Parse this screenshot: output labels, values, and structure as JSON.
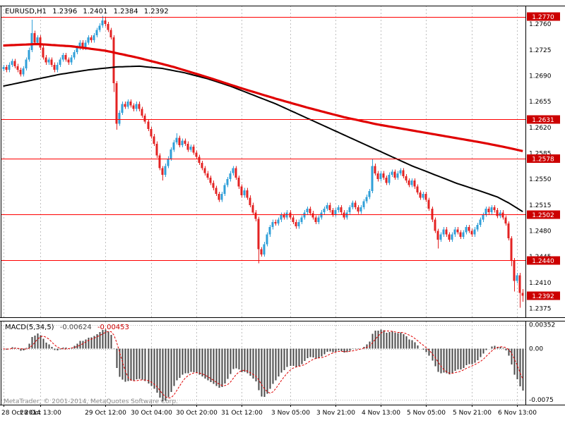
{
  "header": {
    "symbol_period": "EURUSD,H1",
    "open": "1.2396",
    "high": "1.2401",
    "low": "1.2384",
    "close": "1.2392"
  },
  "macd_label": {
    "name": "MACD(5,34,5)",
    "value": "-0.00624",
    "signal": "-0.00453"
  },
  "footer": {
    "copyright": "MetaTrader, © 2001-2014, MetaQuotes Software Corp."
  },
  "colors": {
    "bull": "#2f9fd8",
    "bear": "#e32222",
    "ma_fast": "#000000",
    "ma_slow": "#e00000",
    "level_line": "#ff0000",
    "level_box": "#cc0000",
    "grid": "#c0c0c0",
    "macd_hist": "#4a4a4a",
    "macd_signal": "#e00000",
    "axis_text": "#000000"
  },
  "chart_data": {
    "type": "candlestick+macd",
    "symbol": "EURUSD",
    "timeframe": "H1",
    "title": "EURUSD,H1 1.2396 1.2401 1.2384 1.2392",
    "ohlc_current": {
      "open": 1.2396,
      "high": 1.2401,
      "low": 1.2384,
      "close": 1.2392
    },
    "price_axis": {
      "min": 1.2363,
      "max": 1.2785,
      "tick_labels": [
        1.276,
        1.2725,
        1.269,
        1.2655,
        1.262,
        1.2585,
        1.255,
        1.2515,
        1.248,
        1.2445,
        1.241,
        1.2375
      ]
    },
    "levels": [
      1.277,
      1.2631,
      1.2578,
      1.2502,
      1.244
    ],
    "current_price": 1.2392,
    "time_axis": {
      "ticks": [
        {
          "label": "28 Oct 2014",
          "bar": 0,
          "align": "left"
        },
        {
          "label": "28 Oct 13:00",
          "bar": 13
        },
        {
          "label": "29 Oct 12:00",
          "bar": 36
        },
        {
          "label": "30 Oct 04:00",
          "bar": 52
        },
        {
          "label": "30 Oct 20:00",
          "bar": 68
        },
        {
          "label": "31 Oct 12:00",
          "bar": 84
        },
        {
          "label": "3 Nov 05:00",
          "bar": 101
        },
        {
          "label": "3 Nov 21:00",
          "bar": 117
        },
        {
          "label": "4 Nov 13:00",
          "bar": 133
        },
        {
          "label": "5 Nov 05:00",
          "bar": 149
        },
        {
          "label": "5 Nov 21:00",
          "bar": 165
        },
        {
          "label": "6 Nov 13:00",
          "bar": 181
        }
      ]
    },
    "candles": {
      "first_open": 1.2699,
      "closes": [
        1.2702,
        1.2698,
        1.2705,
        1.271,
        1.2703,
        1.2698,
        1.2692,
        1.27,
        1.2712,
        1.2725,
        1.2748,
        1.2735,
        1.2742,
        1.2728,
        1.2715,
        1.2708,
        1.2712,
        1.2705,
        1.2698,
        1.2705,
        1.2712,
        1.2718,
        1.2712,
        1.2708,
        1.2715,
        1.2722,
        1.2728,
        1.2735,
        1.2728,
        1.2735,
        1.2742,
        1.2738,
        1.2745,
        1.2752,
        1.2758,
        1.2765,
        1.276,
        1.2752,
        1.2742,
        1.268,
        1.2625,
        1.264,
        1.2652,
        1.2648,
        1.2655,
        1.265,
        1.2645,
        1.2652,
        1.2645,
        1.2636,
        1.2628,
        1.2618,
        1.2608,
        1.2598,
        1.2582,
        1.2565,
        1.2556,
        1.2568,
        1.2578,
        1.259,
        1.26,
        1.2606,
        1.2596,
        1.2602,
        1.2598,
        1.259,
        1.2594,
        1.2586,
        1.258,
        1.2572,
        1.2565,
        1.2558,
        1.2552,
        1.2545,
        1.2538,
        1.253,
        1.2522,
        1.253,
        1.2542,
        1.255,
        1.2558,
        1.2565,
        1.2552,
        1.254,
        1.2528,
        1.2535,
        1.2525,
        1.2515,
        1.2505,
        1.2496,
        1.2455,
        1.2448,
        1.2462,
        1.2475,
        1.2485,
        1.2492,
        1.249,
        1.2495,
        1.2502,
        1.2498,
        1.2505,
        1.2498,
        1.2492,
        1.2486,
        1.2492,
        1.2498,
        1.2505,
        1.251,
        1.2504,
        1.2498,
        1.2492,
        1.2498,
        1.2505,
        1.251,
        1.2515,
        1.2508,
        1.2502,
        1.2508,
        1.2512,
        1.2505,
        1.2498,
        1.2505,
        1.2512,
        1.2518,
        1.2512,
        1.2506,
        1.2512,
        1.252,
        1.2526,
        1.2534,
        1.2568,
        1.2558,
        1.255,
        1.2558,
        1.2552,
        1.2545,
        1.2556,
        1.256,
        1.2552,
        1.2558,
        1.2562,
        1.2554,
        1.2548,
        1.2542,
        1.2548,
        1.254,
        1.2532,
        1.2525,
        1.253,
        1.2522,
        1.251,
        1.2495,
        1.248,
        1.2468,
        1.2475,
        1.2482,
        1.2475,
        1.2468,
        1.2475,
        1.2482,
        1.2478,
        1.2472,
        1.2478,
        1.2485,
        1.248,
        1.2475,
        1.2482,
        1.2488,
        1.2495,
        1.2502,
        1.251,
        1.2505,
        1.2512,
        1.2508,
        1.25,
        1.2505,
        1.2498,
        1.249,
        1.247,
        1.244,
        1.2412,
        1.242,
        1.2396,
        1.2392
      ],
      "overrides": {
        "10": {
          "h": 1.2766
        },
        "35": {
          "h": 1.2771
        },
        "36": {
          "h": 1.2769
        },
        "39": {
          "l": 1.2668
        },
        "40": {
          "l": 1.2617
        },
        "56": {
          "l": 1.2548
        },
        "61": {
          "h": 1.2612
        },
        "90": {
          "l": 1.2436
        },
        "130": {
          "h": 1.2577
        },
        "153": {
          "l": 1.2456
        },
        "179": {
          "l": 1.2432
        },
        "180": {
          "l": 1.2398
        },
        "182": {
          "l": 1.2376
        },
        "183": {
          "o": 1.2396,
          "h": 1.2401,
          "l": 1.2384,
          "c": 1.2392
        }
      }
    },
    "ma_slow_red": [
      [
        0,
        1.2731
      ],
      [
        12,
        1.2733
      ],
      [
        24,
        1.273
      ],
      [
        36,
        1.2724
      ],
      [
        48,
        1.2714
      ],
      [
        60,
        1.2702
      ],
      [
        72,
        1.2688
      ],
      [
        84,
        1.2673
      ],
      [
        96,
        1.2659
      ],
      [
        108,
        1.2646
      ],
      [
        120,
        1.2634
      ],
      [
        132,
        1.2624
      ],
      [
        144,
        1.2616
      ],
      [
        156,
        1.2608
      ],
      [
        168,
        1.26
      ],
      [
        176,
        1.2594
      ],
      [
        183,
        1.2588
      ]
    ],
    "ma_fast_black": [
      [
        0,
        1.2676
      ],
      [
        10,
        1.2684
      ],
      [
        20,
        1.2692
      ],
      [
        30,
        1.2698
      ],
      [
        40,
        1.2702
      ],
      [
        48,
        1.2703
      ],
      [
        56,
        1.27
      ],
      [
        64,
        1.2694
      ],
      [
        72,
        1.2686
      ],
      [
        80,
        1.2676
      ],
      [
        88,
        1.2664
      ],
      [
        96,
        1.2652
      ],
      [
        104,
        1.2638
      ],
      [
        112,
        1.2624
      ],
      [
        120,
        1.261
      ],
      [
        128,
        1.2596
      ],
      [
        136,
        1.2582
      ],
      [
        144,
        1.2568
      ],
      [
        152,
        1.2556
      ],
      [
        160,
        1.2544
      ],
      [
        168,
        1.2534
      ],
      [
        174,
        1.2526
      ],
      [
        178,
        1.2518
      ],
      [
        183,
        1.2506
      ]
    ],
    "macd": {
      "params": "5,34,5",
      "value": -0.00624,
      "signal_value": -0.00453,
      "fast_period": 5,
      "slow_period": 34,
      "signal_period": 5,
      "axis": {
        "max": 0.004,
        "min": -0.0082,
        "labels": [
          {
            "text": "0.00352",
            "value": 0.00352
          },
          {
            "text": "0.00",
            "value": 0
          },
          {
            "text": "-0.0075",
            "value": -0.0075
          }
        ]
      }
    }
  }
}
